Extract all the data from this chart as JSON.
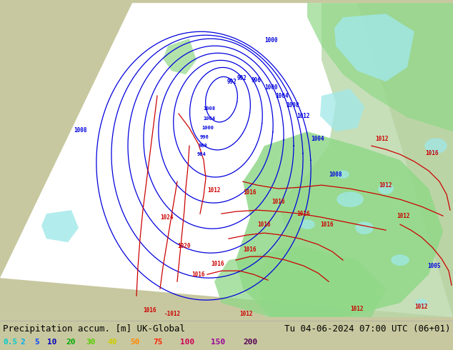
{
  "title_left": "Precipitation accum. [m] UK-Global",
  "title_right": "Tu 04-06-2024 07:00 UTC (06+01)",
  "colorbar_labels": [
    "0.5",
    "2",
    "5",
    "10",
    "20",
    "30",
    "40",
    "50",
    "75",
    "100",
    "150",
    "200"
  ],
  "colorbar_label_colors": [
    "#00cccc",
    "#00aaee",
    "#0044ff",
    "#0000bb",
    "#00aa00",
    "#55cc00",
    "#cccc00",
    "#ff8800",
    "#ff2200",
    "#cc0055",
    "#990099",
    "#550055"
  ],
  "bg_color": "#c8c8a0",
  "bottom_bg": "#d8d8d8",
  "title_fontsize": 9,
  "cb_fontsize": 8,
  "figure_width": 6.34,
  "figure_height": 4.9,
  "dpi": 100,
  "domain_color": "#ffffff",
  "domain_alpha": 1.0,
  "land_green": "#b8d8a8",
  "precip_green": "#90d888",
  "precip_cyan": "#a0e8e8",
  "blue_line_color": "#0000dd",
  "red_line_color": "#cc0000"
}
